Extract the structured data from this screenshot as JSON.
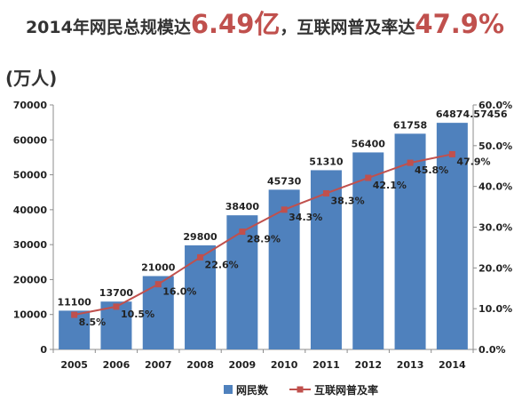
{
  "headline": {
    "part1": "2014年网民总规模达",
    "highlight1": "6.49亿",
    "part2": "，互联网普及率达",
    "highlight2": "47.9%"
  },
  "unit_label": "(万人)",
  "colors": {
    "bar": "#4f81bd",
    "line": "#c0504d",
    "highlight": "#c0504d"
  },
  "chart_data": {
    "type": "bar",
    "categories": [
      "2005",
      "2006",
      "2007",
      "2008",
      "2009",
      "2010",
      "2011",
      "2012",
      "2013",
      "2014"
    ],
    "series": [
      {
        "name": "网民数",
        "type": "bar",
        "axis": "left",
        "values": [
          11100,
          13700,
          21000,
          29800,
          38400,
          45730,
          51310,
          56400,
          61758,
          64874.57456
        ],
        "labels": [
          "11100",
          "13700",
          "21000",
          "29800",
          "38400",
          "45730",
          "51310",
          "56400",
          "61758",
          "64874.57456"
        ]
      },
      {
        "name": "互联网普及率",
        "type": "line",
        "axis": "right",
        "values": [
          8.5,
          10.5,
          16.0,
          22.6,
          28.9,
          34.3,
          38.3,
          42.1,
          45.8,
          47.9
        ],
        "labels": [
          "8.5%",
          "10.5%",
          "16.0%",
          "22.6%",
          "28.9%",
          "34.3%",
          "38.3%",
          "42.1%",
          "45.8%",
          "47.9%"
        ]
      }
    ],
    "y_left": {
      "ylim": [
        0,
        70000
      ],
      "ticks": [
        "0",
        "10000",
        "20000",
        "30000",
        "40000",
        "50000",
        "60000",
        "70000"
      ]
    },
    "y_right": {
      "ylim": [
        0,
        60
      ],
      "ticks": [
        "0.0%",
        "10.0%",
        "20.0%",
        "30.0%",
        "40.0%",
        "50.0%",
        "60.0%"
      ]
    },
    "grid": false,
    "legend_position": "bottom"
  }
}
